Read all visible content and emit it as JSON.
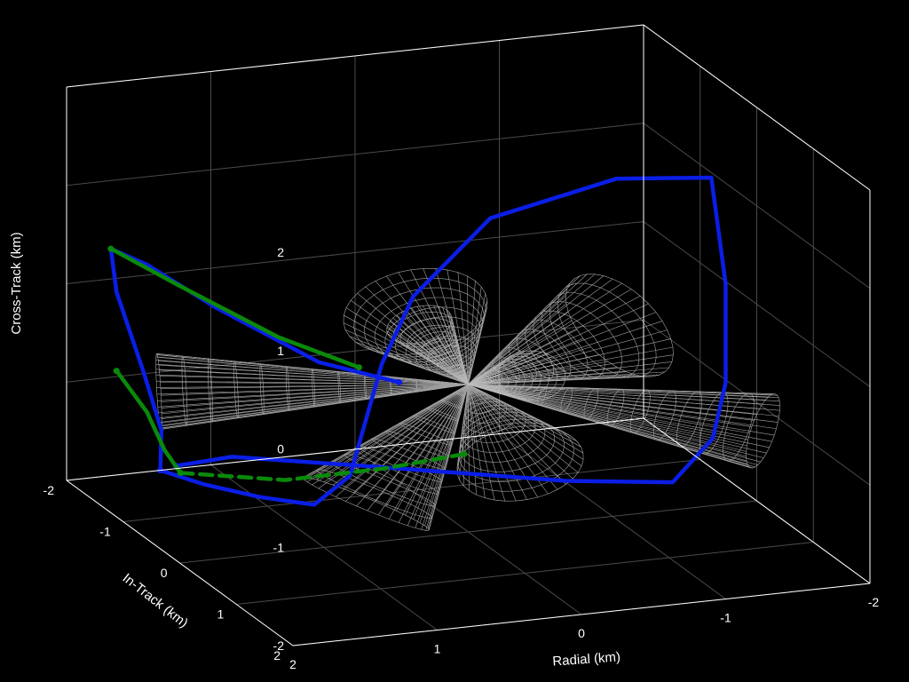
{
  "chart_data": {
    "type": "line",
    "projection": "3d",
    "background": "#000000",
    "grid": true,
    "xlabel": "Radial (km)",
    "ylabel": "In-Track (km)",
    "zlabel": "Cross-Track (km)",
    "xlim": [
      -2,
      2
    ],
    "ylim": [
      -2,
      2
    ],
    "zlim": [
      -2,
      2
    ],
    "xticks": [
      "-2",
      "-1",
      "0",
      "1",
      "2"
    ],
    "yticks": [
      "-2",
      "-1",
      "0",
      "1",
      "2"
    ],
    "zticks": [
      "-2",
      "-1",
      "0",
      "1",
      "2"
    ],
    "colors": {
      "blue": "#0a1ee6",
      "green": "#0a8a0a",
      "mesh": "#bfbfbf",
      "grid": "#4a4a4a",
      "box": "#ffffff"
    },
    "series": [
      {
        "color": "#0a1ee6",
        "style": "solid",
        "points": [
          [
            1.35,
            -2.0,
            -2.0
          ],
          [
            1.2,
            -1.6,
            -2.0
          ],
          [
            1.05,
            -1.0,
            -1.9
          ],
          [
            0.95,
            -0.3,
            -1.7
          ],
          [
            0.82,
            0.0,
            -1.3
          ],
          [
            0.6,
            0.0,
            -0.2
          ],
          [
            0.5,
            0.3,
            0.6
          ],
          [
            0.2,
            0.9,
            1.6
          ],
          [
            -0.4,
            1.6,
            2.2
          ],
          [
            -0.9,
            2.0,
            2.3
          ],
          [
            -1.0,
            2.0,
            1.2
          ],
          [
            -1.0,
            2.0,
            0.2
          ],
          [
            -0.95,
            1.9,
            -0.4
          ],
          [
            -0.75,
            1.7,
            -0.9
          ],
          [
            -0.4,
            0.7,
            -1.25
          ],
          [
            0.5,
            -0.6,
            -1.5
          ],
          [
            1.05,
            -1.5,
            -1.7
          ],
          [
            1.3,
            -1.85,
            -1.9
          ]
        ]
      },
      {
        "color": "#0a1ee6",
        "style": "solid",
        "points": [
          [
            1.35,
            -2.0,
            -2.0
          ],
          [
            1.5,
            -1.6,
            -1.4
          ],
          [
            1.7,
            -1.4,
            -0.7
          ],
          [
            1.85,
            -1.5,
            0.1
          ],
          [
            1.85,
            -1.6,
            0.5
          ],
          [
            1.6,
            -1.6,
            0.3
          ],
          [
            1.3,
            -1.2,
            0.0
          ],
          [
            0.8,
            -0.6,
            -0.4
          ],
          [
            0.4,
            -0.2,
            -0.5
          ]
        ]
      },
      {
        "color": "#0a8a0a",
        "style": "solid",
        "points": [
          [
            1.85,
            -1.6,
            0.5
          ],
          [
            1.5,
            -1.3,
            0.2
          ],
          [
            1.0,
            -0.8,
            -0.2
          ],
          [
            0.6,
            -0.4,
            -0.4
          ]
        ]
      },
      {
        "color": "#0a8a0a",
        "style": "solid",
        "points": [
          [
            1.85,
            -1.5,
            -0.7
          ],
          [
            1.6,
            -1.6,
            -1.2
          ],
          [
            1.4,
            -1.8,
            -1.7
          ],
          [
            1.25,
            -1.9,
            -2.0
          ]
        ]
      },
      {
        "color": "#0a8a0a",
        "style": "dashed",
        "points": [
          [
            1.25,
            -1.9,
            -2.0
          ],
          [
            0.8,
            -1.2,
            -1.85
          ],
          [
            0.3,
            -0.7,
            -1.6
          ],
          [
            -0.05,
            -0.2,
            -1.3
          ]
        ]
      }
    ],
    "cones": [
      {
        "direction": [
          0.45,
          0.35,
          0.85
        ],
        "length": 1.2,
        "half_angle_deg": 22
      },
      {
        "direction": [
          -0.05,
          0.9,
          0.45
        ],
        "length": 1.1,
        "half_angle_deg": 12
      },
      {
        "direction": [
          -0.55,
          0.5,
          0.55
        ],
        "length": 1.3,
        "half_angle_deg": 22
      },
      {
        "direction": [
          0.92,
          -0.38,
          -0.05
        ],
        "length": 2.0,
        "half_angle_deg": 10
      },
      {
        "direction": [
          -0.78,
          0.62,
          -0.1
        ],
        "length": 2.0,
        "half_angle_deg": 10
      },
      {
        "direction": [
          0.55,
          0.05,
          -0.8
        ],
        "length": 1.3,
        "half_angle_deg": 20
      },
      {
        "direction": [
          -0.35,
          -0.3,
          -0.7
        ],
        "length": 1.3,
        "half_angle_deg": 18
      },
      {
        "direction": [
          0.0,
          -0.7,
          0.2
        ],
        "length": 0.9,
        "half_angle_deg": 14
      }
    ]
  }
}
